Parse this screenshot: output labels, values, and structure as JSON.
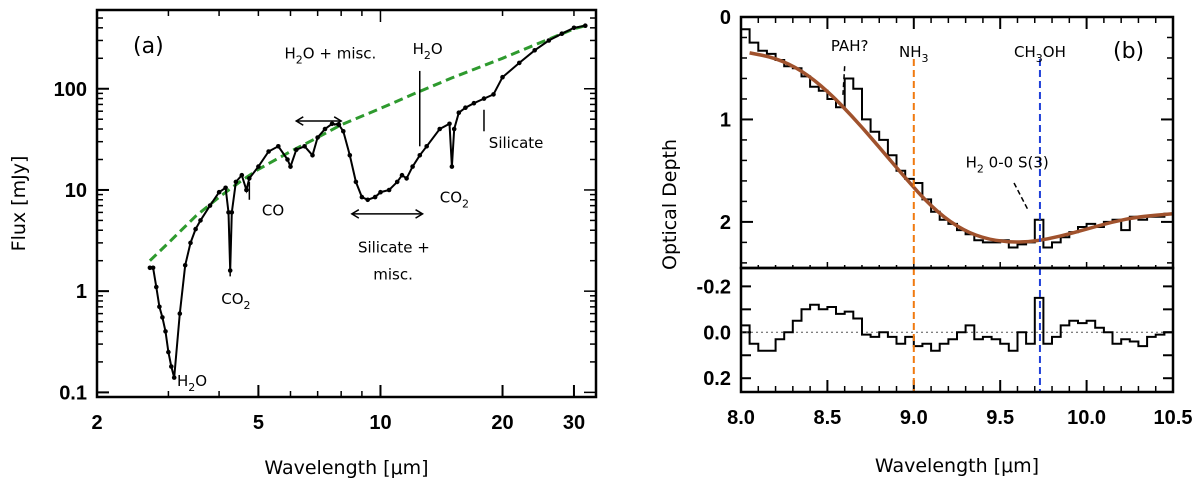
{
  "colors": {
    "continuum": "#2e9a2e",
    "fit": "#a0522d",
    "nh3": "#f07a10",
    "ch3oh": "#1f3fd8",
    "data": "#000000"
  },
  "chart_data": [
    {
      "id": "a",
      "type": "line",
      "panel_label": "(a)",
      "xlabel": "Wavelength [μm]",
      "ylabel": "Flux [mJy]",
      "xscale": "log",
      "yscale": "log",
      "xlim": [
        2,
        34
      ],
      "ylim": [
        0.09,
        600
      ],
      "xticks": [
        {
          "value": 2,
          "label": "2"
        },
        {
          "value": 5,
          "label": "5"
        },
        {
          "value": 10,
          "label": "10"
        },
        {
          "value": 20,
          "label": "20"
        },
        {
          "value": 30,
          "label": "30"
        }
      ],
      "yticks": [
        {
          "value": 0.1,
          "label": "0.1"
        },
        {
          "value": 1,
          "label": "1"
        },
        {
          "value": 10,
          "label": "10"
        },
        {
          "value": 100,
          "label": "100"
        }
      ],
      "series": [
        {
          "style": "solid-with-dots",
          "x": [
            2.7,
            2.75,
            2.8,
            2.85,
            2.9,
            2.95,
            3.0,
            3.05,
            3.1,
            3.2,
            3.3,
            3.4,
            3.5,
            3.6,
            3.8,
            4.0,
            4.15,
            4.22,
            4.26,
            4.3,
            4.4,
            4.55,
            4.67,
            4.75,
            5.0,
            5.3,
            5.6,
            5.9,
            6.0,
            6.2,
            6.5,
            6.8,
            7.0,
            7.3,
            7.6,
            7.9,
            8.1,
            8.4,
            8.7,
            9.0,
            9.3,
            9.7,
            10.0,
            10.5,
            11.0,
            11.3,
            11.6,
            12.0,
            12.5,
            13.0,
            14.0,
            14.8,
            15.0,
            15.2,
            15.6,
            16.2,
            17.0,
            18.0,
            19.0,
            20.0,
            22.0,
            24.0,
            26.0,
            28.0,
            30.0,
            32.0
          ],
          "y": [
            1.7,
            1.7,
            1.1,
            0.7,
            0.55,
            0.4,
            0.25,
            0.18,
            0.14,
            0.6,
            1.8,
            3.0,
            4.1,
            5.0,
            7.0,
            9.5,
            10.5,
            6.0,
            1.6,
            6.0,
            12.0,
            14.0,
            10.0,
            13.0,
            17.0,
            24.0,
            27.0,
            20.0,
            17.0,
            25.0,
            27.0,
            22.0,
            33.0,
            40.0,
            45.0,
            44.0,
            38.0,
            22.0,
            12.0,
            8.5,
            8.0,
            8.5,
            9.5,
            10.0,
            12.0,
            14.0,
            13.0,
            17.0,
            22.0,
            27.0,
            40.0,
            45.0,
            17.0,
            40.0,
            58.0,
            65.0,
            72.0,
            80.0,
            88.0,
            130.0,
            180.0,
            240.0,
            300.0,
            350.0,
            400.0,
            420.0
          ]
        },
        {
          "style": "dashed",
          "color_key": "continuum",
          "x": [
            2.7,
            3.0,
            3.5,
            4.0,
            4.5,
            5.0,
            6.0,
            7.0,
            8.0,
            10.0,
            12.0,
            15.0,
            20.0,
            25.0,
            30.0,
            32.0
          ],
          "y": [
            2.0,
            3.0,
            5.5,
            8.5,
            12.0,
            16.0,
            24.0,
            33.0,
            44.0,
            64.0,
            88.0,
            128.0,
            200.0,
            290.0,
            390.0,
            420.0
          ]
        }
      ],
      "annotations": [
        {
          "text": "H",
          "sub": "2",
          "tail": "O",
          "line_x": 3.1,
          "line_y": [
            0.14,
            0.16
          ],
          "text_x": 3.15,
          "text_y": 0.115
        },
        {
          "text": "CO",
          "sub": "2",
          "tail": "",
          "line_x": 4.26,
          "line_y": [
            1.6,
            1.4
          ],
          "text_x": 4.05,
          "text_y": 0.75
        },
        {
          "text": "CO",
          "sub": "",
          "tail": "",
          "line_x": 4.75,
          "line_y": [
            12.0,
            8.0
          ],
          "text_x": 5.1,
          "text_y": 5.6
        },
        {
          "text": "H",
          "sub": "2",
          "tail": "O + misc.",
          "line_x": null,
          "line_y": null,
          "text_x": 5.8,
          "text_y": 200
        },
        {
          "text": "H",
          "sub": "2",
          "tail": "O",
          "line_x": 12.5,
          "line_y": [
            150,
            27
          ],
          "text_x": 12.0,
          "text_y": 220
        },
        {
          "text": "CO",
          "sub": "2",
          "tail": "",
          "line_x": null,
          "line_y": null,
          "text_x": 14.0,
          "text_y": 7.5
        },
        {
          "text": "Silicate",
          "sub": "",
          "tail": "",
          "line_x": 18.0,
          "line_y": [
            62,
            38
          ],
          "text_x": 18.5,
          "text_y": 26
        },
        {
          "text": "Silicate +",
          "sub": "",
          "tail": "",
          "line_x": null,
          "line_y": null,
          "text_x": 8.8,
          "text_y": 2.4
        },
        {
          "text": "misc.",
          "sub": "",
          "tail": "",
          "line_x": null,
          "line_y": null,
          "text_x": 9.6,
          "text_y": 1.3
        }
      ],
      "arrows": [
        {
          "x": [
            6.2,
            8.0
          ],
          "y": 48
        },
        {
          "x": [
            8.5,
            12.7
          ],
          "y": 5.8
        }
      ]
    },
    {
      "id": "b",
      "type": "line",
      "panel_label": "(b)",
      "xlabel": "Wavelength [μm]",
      "ylabel": "Optical Depth",
      "xlim": [
        8.0,
        10.5
      ],
      "xticks": [
        {
          "value": 8.0,
          "label": "8.0"
        },
        {
          "value": 8.5,
          "label": "8.5"
        },
        {
          "value": 9.0,
          "label": "9.0"
        },
        {
          "value": 9.5,
          "label": "9.5"
        },
        {
          "value": 10.0,
          "label": "10.0"
        },
        {
          "value": 10.5,
          "label": "10.5"
        }
      ],
      "top": {
        "ylim_inverted": [
          0,
          2.45
        ],
        "yticks": [
          {
            "value": 0,
            "label": "0"
          },
          {
            "value": 1,
            "label": "1"
          },
          {
            "value": 2,
            "label": "2"
          }
        ],
        "steps_x": [
          8.0,
          8.05,
          8.1,
          8.15,
          8.2,
          8.25,
          8.3,
          8.35,
          8.4,
          8.45,
          8.5,
          8.55,
          8.6,
          8.65,
          8.7,
          8.75,
          8.8,
          8.85,
          8.9,
          8.95,
          9.0,
          9.05,
          9.1,
          9.15,
          9.2,
          9.25,
          9.3,
          9.35,
          9.4,
          9.45,
          9.5,
          9.55,
          9.6,
          9.65,
          9.7,
          9.75,
          9.8,
          9.85,
          9.9,
          9.95,
          10.0,
          10.05,
          10.1,
          10.15,
          10.2,
          10.25,
          10.3,
          10.35,
          10.4,
          10.45,
          10.5
        ],
        "steps_y": [
          0.12,
          0.25,
          0.33,
          0.36,
          0.42,
          0.48,
          0.5,
          0.58,
          0.68,
          0.72,
          0.8,
          0.88,
          0.6,
          0.7,
          1.0,
          1.12,
          1.2,
          1.35,
          1.5,
          1.58,
          1.62,
          1.78,
          1.9,
          1.98,
          2.02,
          2.08,
          2.12,
          2.18,
          2.2,
          2.2,
          2.18,
          2.25,
          2.22,
          2.2,
          1.98,
          2.25,
          2.2,
          2.15,
          2.1,
          2.05,
          2.02,
          2.05,
          2.0,
          1.98,
          2.08,
          1.95,
          1.98,
          1.95,
          1.95,
          1.92
        ],
        "fit_x": [
          8.05,
          8.2,
          8.35,
          8.5,
          8.65,
          8.8,
          8.95,
          9.1,
          9.25,
          9.4,
          9.55,
          9.7,
          9.85,
          10.0,
          10.15,
          10.3,
          10.5
        ],
        "fit_y": [
          0.35,
          0.4,
          0.52,
          0.72,
          0.98,
          1.27,
          1.57,
          1.85,
          2.05,
          2.16,
          2.2,
          2.19,
          2.14,
          2.07,
          2.0,
          1.95,
          1.92
        ]
      },
      "bottom": {
        "ylim_inverted": [
          -0.28,
          0.26
        ],
        "yticks": [
          {
            "value": -0.2,
            "label": "-0.2"
          },
          {
            "value": 0.0,
            "label": "0.0"
          },
          {
            "value": 0.2,
            "label": "0.2"
          }
        ],
        "steps_x": [
          8.0,
          8.05,
          8.1,
          8.15,
          8.2,
          8.25,
          8.3,
          8.35,
          8.4,
          8.45,
          8.5,
          8.55,
          8.6,
          8.65,
          8.7,
          8.75,
          8.8,
          8.85,
          8.9,
          8.95,
          9.0,
          9.05,
          9.1,
          9.15,
          9.2,
          9.25,
          9.3,
          9.35,
          9.4,
          9.45,
          9.5,
          9.55,
          9.6,
          9.65,
          9.7,
          9.75,
          9.8,
          9.85,
          9.9,
          9.95,
          10.0,
          10.05,
          10.1,
          10.15,
          10.2,
          10.25,
          10.3,
          10.35,
          10.4,
          10.45,
          10.5
        ],
        "steps_y": [
          -0.03,
          0.05,
          0.08,
          0.08,
          0.03,
          0.0,
          -0.05,
          -0.1,
          -0.12,
          -0.1,
          -0.11,
          -0.08,
          -0.09,
          -0.06,
          0.01,
          0.02,
          0.0,
          0.02,
          0.05,
          0.02,
          0.06,
          0.05,
          0.08,
          0.05,
          0.03,
          0.0,
          -0.03,
          0.03,
          0.02,
          0.03,
          0.05,
          0.08,
          0.0,
          0.05,
          -0.15,
          0.05,
          0.02,
          -0.03,
          -0.05,
          -0.04,
          -0.05,
          -0.02,
          0.0,
          0.05,
          0.03,
          0.04,
          0.06,
          0.02,
          0.01,
          0.0
        ]
      },
      "markers": [
        {
          "label": "NH",
          "sub": "3",
          "x": 9.0,
          "color_key": "nh3"
        },
        {
          "label": "CH",
          "sub": "3",
          "tail": "OH",
          "x": 9.73,
          "color_key": "ch3oh"
        }
      ],
      "annotations": [
        {
          "text": "PAH?",
          "sub": "",
          "tail": "",
          "text_x": 8.52,
          "text_y": 0.33,
          "line_from": [
            8.6,
            0.48
          ],
          "line_to": [
            8.59,
            0.76
          ]
        },
        {
          "text": "H",
          "sub": "2",
          "tail": " 0-0 S(3)",
          "text_x": 9.3,
          "text_y": 1.47,
          "line_from": [
            9.58,
            1.62
          ],
          "line_to": [
            9.66,
            1.88
          ]
        }
      ]
    }
  ]
}
